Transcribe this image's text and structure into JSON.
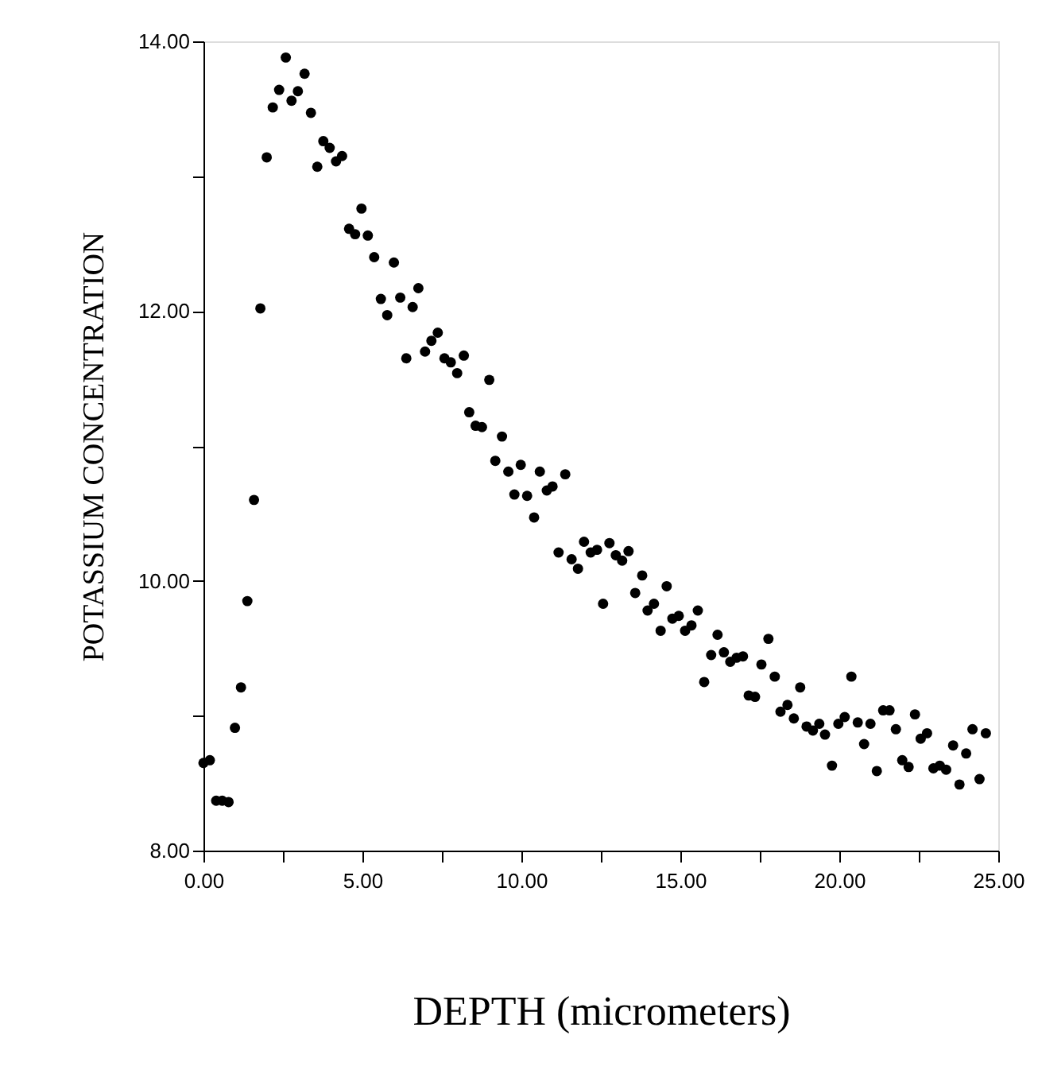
{
  "chart_data": {
    "type": "scatter",
    "xlabel": "DEPTH (micrometers)",
    "ylabel": "POTASSIUM CONCENTRATION",
    "x": [
      0.0,
      0.2,
      0.4,
      0.59,
      0.79,
      0.99,
      1.18,
      1.38,
      1.59,
      1.79,
      1.99,
      2.18,
      2.38,
      2.59,
      2.77,
      2.97,
      3.18,
      3.38,
      3.58,
      3.77,
      3.97,
      4.17,
      4.36,
      4.58,
      4.77,
      4.97,
      5.17,
      5.37,
      5.58,
      5.78,
      5.99,
      6.19,
      6.38,
      6.58,
      6.76,
      6.97,
      7.17,
      7.37,
      7.58,
      7.78,
      7.98,
      8.19,
      8.36,
      8.56,
      8.76,
      8.99,
      9.18,
      9.39,
      9.59,
      9.78,
      9.98,
      10.18,
      10.4,
      10.58,
      10.8,
      10.98,
      11.17,
      11.38,
      11.58,
      11.78,
      11.97,
      12.18,
      12.38,
      12.57,
      12.77,
      12.97,
      13.17,
      13.37,
      13.58,
      13.8,
      13.97,
      14.17,
      14.38,
      14.57,
      14.75,
      14.95,
      15.15,
      15.35,
      15.55,
      15.75,
      15.97,
      16.17,
      16.37,
      16.57,
      16.77,
      16.97,
      17.15,
      17.35,
      17.55,
      17.77,
      17.97,
      18.15,
      18.37,
      18.57,
      18.77,
      18.97,
      19.17,
      19.37,
      19.55,
      19.77,
      19.97,
      20.17,
      20.38,
      20.58,
      20.78,
      20.98,
      21.18,
      21.38,
      21.58,
      21.78,
      21.98,
      22.18,
      22.38,
      22.56,
      22.76,
      22.96,
      23.16,
      23.36,
      23.58,
      23.78,
      23.99,
      24.19,
      24.41,
      24.61
    ],
    "values": [
      8.65,
      8.67,
      8.37,
      8.37,
      8.36,
      8.91,
      9.21,
      9.85,
      10.6,
      12.02,
      13.14,
      13.51,
      13.64,
      13.88,
      13.56,
      13.63,
      13.76,
      13.47,
      13.07,
      13.26,
      13.21,
      13.11,
      13.15,
      12.61,
      12.57,
      12.76,
      12.56,
      12.4,
      12.09,
      11.97,
      12.36,
      12.1,
      11.65,
      12.03,
      12.17,
      11.7,
      11.78,
      11.84,
      11.65,
      11.62,
      11.54,
      11.67,
      11.25,
      11.15,
      11.14,
      11.49,
      10.89,
      11.07,
      10.81,
      10.64,
      10.86,
      10.63,
      10.47,
      10.81,
      10.67,
      10.7,
      10.21,
      10.79,
      10.16,
      10.09,
      10.29,
      10.21,
      10.23,
      9.83,
      10.28,
      10.19,
      10.15,
      10.22,
      9.91,
      10.04,
      9.78,
      9.83,
      9.63,
      9.96,
      9.72,
      9.74,
      9.63,
      9.67,
      9.78,
      9.25,
      9.45,
      9.6,
      9.47,
      9.4,
      9.43,
      9.44,
      9.15,
      9.14,
      9.38,
      9.57,
      9.29,
      9.03,
      9.08,
      8.98,
      9.21,
      8.92,
      8.89,
      8.94,
      8.86,
      8.63,
      8.94,
      8.99,
      9.29,
      8.95,
      8.79,
      8.94,
      8.59,
      9.04,
      9.04,
      8.9,
      8.67,
      8.62,
      9.01,
      8.83,
      8.87,
      8.61,
      8.63,
      8.6,
      8.78,
      8.49,
      8.72,
      8.9,
      8.53,
      8.87
    ],
    "color": "#000000",
    "marker": "circle",
    "grid": false,
    "xlim": [
      0,
      25
    ],
    "ylim": [
      8,
      14
    ],
    "xticks": [
      {
        "value": 0,
        "label": "0.00"
      },
      {
        "value": 2.5,
        "label": null
      },
      {
        "value": 5,
        "label": "5.00"
      },
      {
        "value": 7.5,
        "label": null
      },
      {
        "value": 10,
        "label": "10.00"
      },
      {
        "value": 12.5,
        "label": null
      },
      {
        "value": 15,
        "label": "15.00"
      },
      {
        "value": 17.5,
        "label": null
      },
      {
        "value": 20,
        "label": "20.00"
      },
      {
        "value": 22.5,
        "label": null
      },
      {
        "value": 25,
        "label": "25.00"
      }
    ],
    "yticks": [
      {
        "value": 8,
        "label": "8.00"
      },
      {
        "value": 9,
        "label": null
      },
      {
        "value": 10,
        "label": "10.00"
      },
      {
        "value": 11,
        "label": null
      },
      {
        "value": 12,
        "label": "12.00"
      },
      {
        "value": 13,
        "label": null
      },
      {
        "value": 14,
        "label": "14.00"
      }
    ]
  }
}
